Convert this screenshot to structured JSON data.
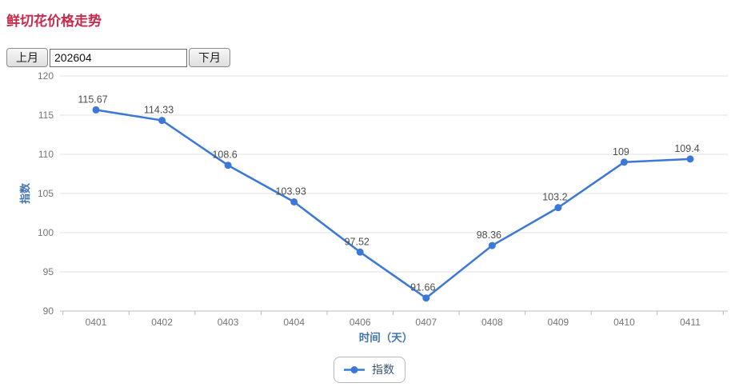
{
  "page": {
    "title": "鲜切花价格走势"
  },
  "controls": {
    "prev_button": "上月",
    "next_button": "下月",
    "month_value": "202604"
  },
  "legend": {
    "label": "指数"
  },
  "colors": {
    "title": "#c72b4b",
    "line": "#3b78d8",
    "axis_title": "#4176b4",
    "tick_label": "#757575",
    "annotation": "#4d4d4d",
    "gridline": "#e0e0e0",
    "axis_line": "#bbbbbb",
    "legend_text": "#3a5472"
  },
  "chart_data": {
    "type": "line",
    "categories": [
      "0401",
      "0402",
      "0403",
      "0404",
      "0406",
      "0407",
      "0408",
      "0409",
      "0410",
      "0411"
    ],
    "series": [
      {
        "name": "指数",
        "values": [
          115.67,
          114.33,
          108.6,
          103.93,
          97.52,
          91.66,
          98.36,
          103.2,
          109,
          109.4
        ]
      }
    ],
    "point_labels": [
      "115.67",
      "114.33",
      "108.6",
      "103.93",
      "97.52",
      "91.66",
      "98.36",
      "103.2",
      "109",
      "109.4"
    ],
    "title": "",
    "xlabel": "时间（天）",
    "ylabel": "指数",
    "ylim": [
      90,
      120
    ],
    "yticks": [
      90,
      95,
      100,
      105,
      110,
      115,
      120
    ],
    "grid": true,
    "legend_position": "bottom"
  }
}
